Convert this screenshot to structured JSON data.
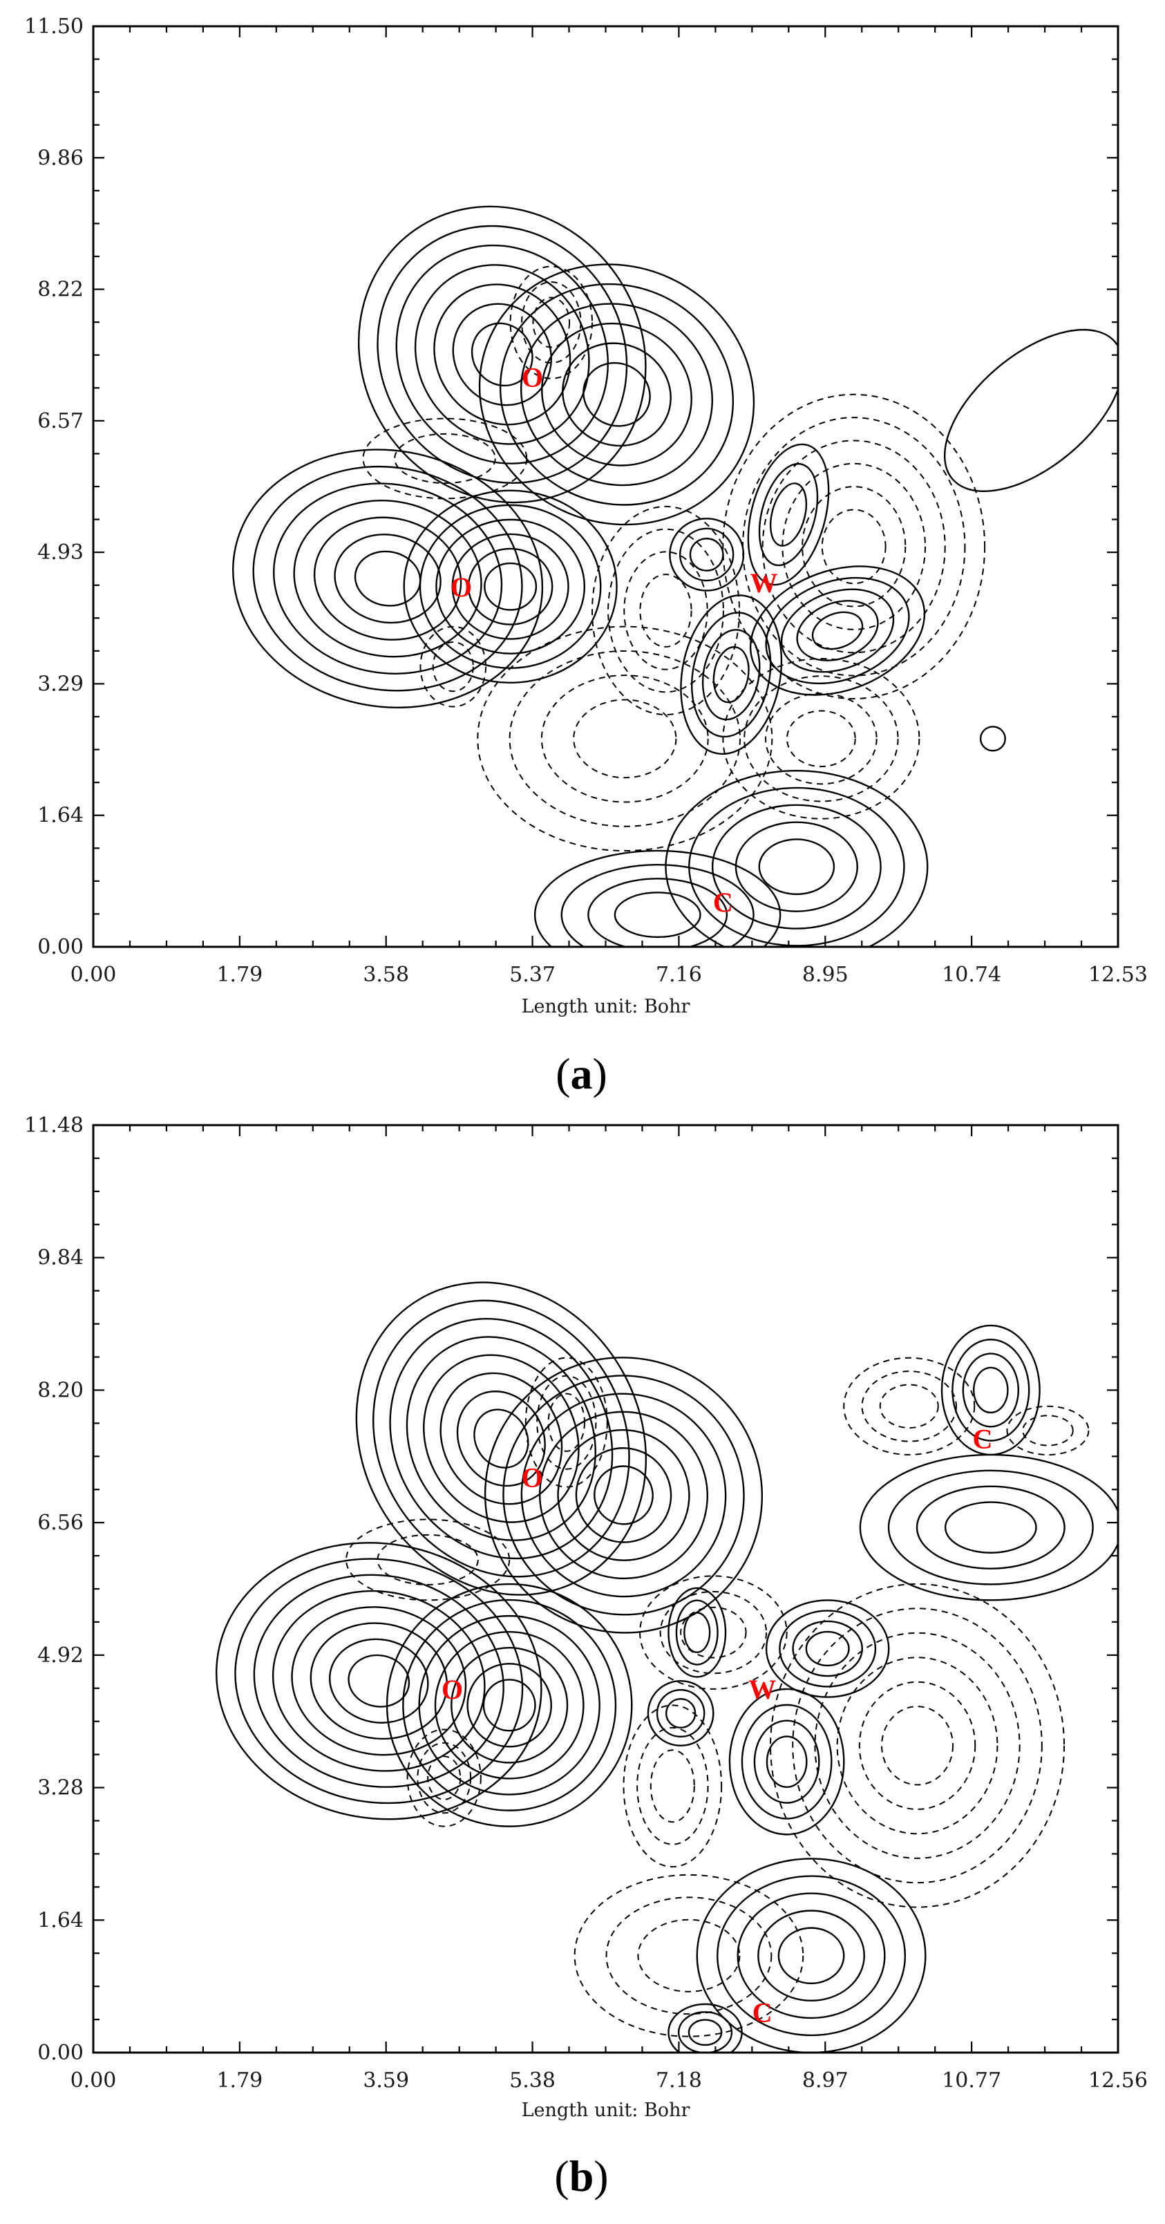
{
  "chart_data": [
    {
      "type": "contour",
      "panel": "a",
      "caption_label": "a",
      "xlabel": "Length unit: Bohr",
      "xlim": [
        0.0,
        12.53
      ],
      "ylim": [
        0.0,
        11.5
      ],
      "x_ticks": [
        "0.00",
        "1.79",
        "3.58",
        "5.37",
        "7.16",
        "8.95",
        "10.74",
        "12.53"
      ],
      "y_ticks": [
        "0.00",
        "1.64",
        "3.29",
        "4.93",
        "6.57",
        "8.22",
        "9.86",
        "11.50"
      ],
      "contour_styles": {
        "positive": "solid",
        "negative": "dashed"
      },
      "atoms": [
        {
          "label": "O",
          "x": 5.37,
          "y": 7.12
        },
        {
          "label": "O",
          "x": 4.5,
          "y": 4.5
        },
        {
          "label": "W",
          "x": 8.2,
          "y": 4.55
        },
        {
          "label": "C",
          "x": 7.7,
          "y": 0.56
        }
      ],
      "lobes": [
        {
          "sign": "positive",
          "x": 5.0,
          "y": 7.4,
          "rx": 1.7,
          "ry": 1.9,
          "angle": -35,
          "levels": 7
        },
        {
          "sign": "positive",
          "x": 6.4,
          "y": 6.9,
          "rx": 1.7,
          "ry": 1.6,
          "angle": 25,
          "levels": 6
        },
        {
          "sign": "positive",
          "x": 3.6,
          "y": 4.6,
          "rx": 1.9,
          "ry": 1.6,
          "angle": 10,
          "levels": 7
        },
        {
          "sign": "positive",
          "x": 5.1,
          "y": 4.5,
          "rx": 1.3,
          "ry": 1.2,
          "angle": 0,
          "levels": 6
        },
        {
          "sign": "positive",
          "x": 7.5,
          "y": 4.9,
          "rx": 0.45,
          "ry": 0.45,
          "angle": 0,
          "levels": 3
        },
        {
          "sign": "positive",
          "x": 8.5,
          "y": 5.4,
          "rx": 0.45,
          "ry": 0.9,
          "angle": 15,
          "levels": 3
        },
        {
          "sign": "positive",
          "x": 9.1,
          "y": 3.95,
          "rx": 1.1,
          "ry": 0.75,
          "angle": -20,
          "levels": 5
        },
        {
          "sign": "positive",
          "x": 7.8,
          "y": 3.4,
          "rx": 0.6,
          "ry": 1.0,
          "angle": 10,
          "levels": 4
        },
        {
          "sign": "positive",
          "x": 8.6,
          "y": 1.0,
          "rx": 1.6,
          "ry": 1.2,
          "angle": 0,
          "levels": 5
        },
        {
          "sign": "positive",
          "x": 6.9,
          "y": 0.4,
          "rx": 1.5,
          "ry": 0.8,
          "angle": 0,
          "levels": 4
        },
        {
          "sign": "positive",
          "x": 11.5,
          "y": 6.7,
          "rx": 1.3,
          "ry": 0.7,
          "angle": -40,
          "levels": 1
        },
        {
          "sign": "positive",
          "x": 11.0,
          "y": 2.6,
          "rx": 0.15,
          "ry": 0.15,
          "angle": 0,
          "levels": 1
        },
        {
          "sign": "negative",
          "x": 9.3,
          "y": 5.0,
          "rx": 1.6,
          "ry": 1.9,
          "angle": 0,
          "levels": 6
        },
        {
          "sign": "negative",
          "x": 7.0,
          "y": 4.2,
          "rx": 0.9,
          "ry": 1.3,
          "angle": 0,
          "levels": 4
        },
        {
          "sign": "negative",
          "x": 8.9,
          "y": 2.6,
          "rx": 1.2,
          "ry": 1.0,
          "angle": 0,
          "levels": 4
        },
        {
          "sign": "negative",
          "x": 6.5,
          "y": 2.6,
          "rx": 1.8,
          "ry": 1.4,
          "angle": 0,
          "levels": 4
        },
        {
          "sign": "negative",
          "x": 5.6,
          "y": 7.8,
          "rx": 0.5,
          "ry": 0.7,
          "angle": 0,
          "levels": 3
        },
        {
          "sign": "negative",
          "x": 4.4,
          "y": 3.5,
          "rx": 0.4,
          "ry": 0.5,
          "angle": 0,
          "levels": 2
        },
        {
          "sign": "negative",
          "x": 4.3,
          "y": 6.1,
          "rx": 1.0,
          "ry": 0.5,
          "angle": 0,
          "levels": 2
        }
      ]
    },
    {
      "type": "contour",
      "panel": "b",
      "caption_label": "b",
      "xlabel": "Length unit: Bohr",
      "xlim": [
        0.0,
        12.56
      ],
      "ylim": [
        0.0,
        11.48
      ],
      "x_ticks": [
        "0.00",
        "1.79",
        "3.59",
        "5.38",
        "7.18",
        "8.97",
        "10.77",
        "12.56"
      ],
      "y_ticks": [
        "0.00",
        "1.64",
        "3.28",
        "4.92",
        "6.56",
        "8.20",
        "9.84",
        "11.48"
      ],
      "contour_styles": {
        "positive": "solid",
        "negative": "dashed"
      },
      "atoms": [
        {
          "label": "O",
          "x": 5.38,
          "y": 7.12
        },
        {
          "label": "O",
          "x": 4.4,
          "y": 4.5
        },
        {
          "label": "W",
          "x": 8.2,
          "y": 4.5
        },
        {
          "label": "C",
          "x": 10.9,
          "y": 7.6
        },
        {
          "label": "C",
          "x": 8.2,
          "y": 0.5
        }
      ],
      "lobes": [
        {
          "sign": "positive",
          "x": 5.0,
          "y": 7.6,
          "rx": 1.7,
          "ry": 2.0,
          "angle": -30,
          "levels": 8
        },
        {
          "sign": "positive",
          "x": 6.5,
          "y": 6.9,
          "rx": 1.7,
          "ry": 1.7,
          "angle": 25,
          "levels": 7
        },
        {
          "sign": "positive",
          "x": 3.5,
          "y": 4.6,
          "rx": 2.0,
          "ry": 1.7,
          "angle": 10,
          "levels": 8
        },
        {
          "sign": "positive",
          "x": 5.1,
          "y": 4.3,
          "rx": 1.5,
          "ry": 1.5,
          "angle": 0,
          "levels": 7
        },
        {
          "sign": "positive",
          "x": 7.4,
          "y": 5.2,
          "rx": 0.35,
          "ry": 0.55,
          "angle": 0,
          "levels": 3
        },
        {
          "sign": "positive",
          "x": 9.0,
          "y": 5.0,
          "rx": 0.75,
          "ry": 0.6,
          "angle": 0,
          "levels": 4
        },
        {
          "sign": "positive",
          "x": 7.2,
          "y": 4.2,
          "rx": 0.4,
          "ry": 0.4,
          "angle": 0,
          "levels": 3
        },
        {
          "sign": "positive",
          "x": 8.5,
          "y": 3.6,
          "rx": 0.7,
          "ry": 0.9,
          "angle": 0,
          "levels": 4
        },
        {
          "sign": "positive",
          "x": 11.0,
          "y": 6.5,
          "rx": 1.6,
          "ry": 0.9,
          "angle": 0,
          "levels": 4
        },
        {
          "sign": "positive",
          "x": 11.0,
          "y": 8.2,
          "rx": 0.6,
          "ry": 0.8,
          "angle": 0,
          "levels": 4
        },
        {
          "sign": "positive",
          "x": 8.8,
          "y": 1.2,
          "rx": 1.4,
          "ry": 1.2,
          "angle": 0,
          "levels": 5
        },
        {
          "sign": "positive",
          "x": 7.5,
          "y": 0.25,
          "rx": 0.45,
          "ry": 0.35,
          "angle": 0,
          "levels": 3
        },
        {
          "sign": "negative",
          "x": 10.1,
          "y": 3.8,
          "rx": 1.8,
          "ry": 2.0,
          "angle": 0,
          "levels": 6
        },
        {
          "sign": "negative",
          "x": 7.6,
          "y": 5.2,
          "rx": 0.9,
          "ry": 0.7,
          "angle": 0,
          "levels": 3
        },
        {
          "sign": "negative",
          "x": 10.0,
          "y": 8.0,
          "rx": 0.8,
          "ry": 0.6,
          "angle": 0,
          "levels": 3
        },
        {
          "sign": "negative",
          "x": 11.7,
          "y": 7.7,
          "rx": 0.5,
          "ry": 0.3,
          "angle": 0,
          "levels": 2
        },
        {
          "sign": "negative",
          "x": 5.8,
          "y": 7.8,
          "rx": 0.5,
          "ry": 0.8,
          "angle": 0,
          "levels": 3
        },
        {
          "sign": "negative",
          "x": 4.3,
          "y": 3.4,
          "rx": 0.45,
          "ry": 0.6,
          "angle": 0,
          "levels": 3
        },
        {
          "sign": "negative",
          "x": 4.1,
          "y": 6.1,
          "rx": 1.0,
          "ry": 0.5,
          "angle": 0,
          "levels": 2
        },
        {
          "sign": "negative",
          "x": 7.3,
          "y": 1.2,
          "rx": 1.4,
          "ry": 1.0,
          "angle": 0,
          "levels": 3
        },
        {
          "sign": "negative",
          "x": 7.1,
          "y": 3.3,
          "rx": 0.6,
          "ry": 1.0,
          "angle": 0,
          "levels": 3
        }
      ]
    }
  ]
}
